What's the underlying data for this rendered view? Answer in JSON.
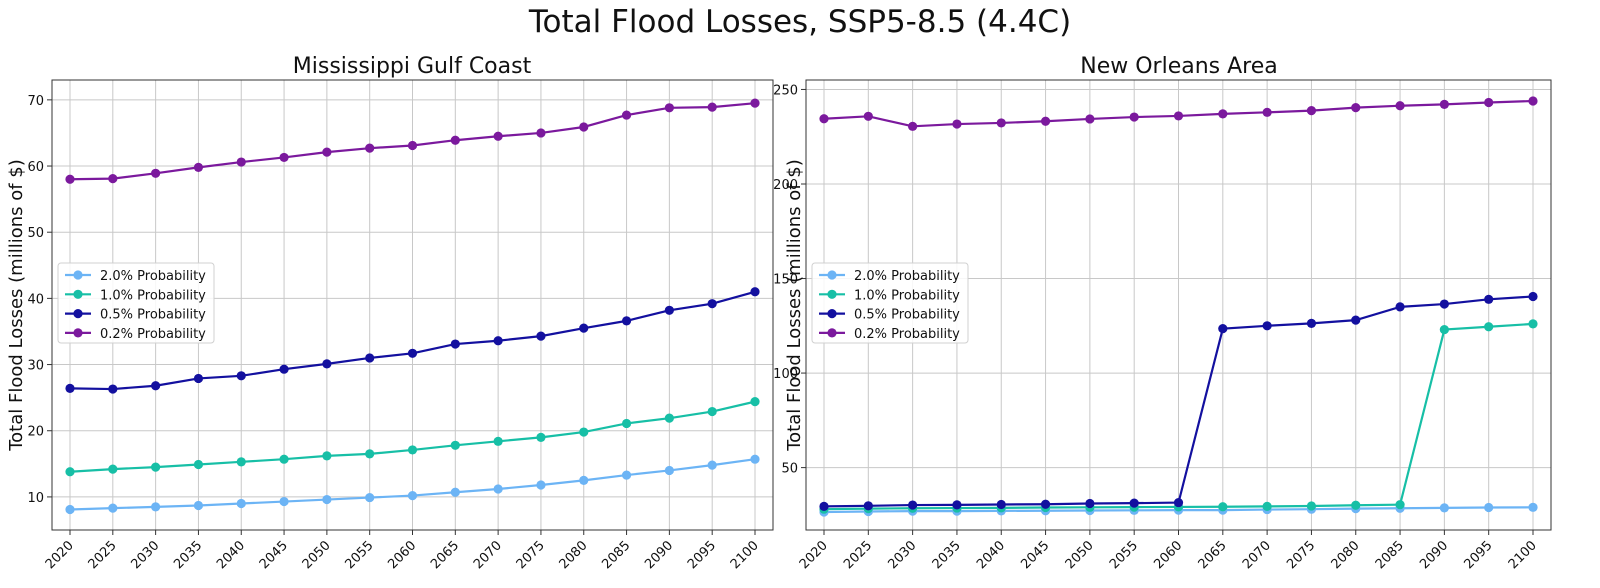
{
  "title": "Total Flood Losses, SSP5-8.5 (4.4C)",
  "chart_data": [
    {
      "type": "line",
      "title": "Mississippi Gulf Coast",
      "xlabel": "",
      "ylabel": "Total Flood Losses (millions of $)",
      "x": [
        2020,
        2025,
        2030,
        2035,
        2040,
        2045,
        2050,
        2055,
        2060,
        2065,
        2070,
        2075,
        2080,
        2085,
        2090,
        2095,
        2100
      ],
      "yticks": [
        10,
        20,
        30,
        40,
        50,
        60,
        70
      ],
      "ylim": [
        5,
        73
      ],
      "grid": true,
      "legend_position": "center-left",
      "series": [
        {
          "name": "2.0% Probability",
          "color": "#6cb4f5",
          "values": [
            8.1,
            8.3,
            8.5,
            8.7,
            9.0,
            9.3,
            9.6,
            9.9,
            10.2,
            10.7,
            11.2,
            11.8,
            12.5,
            13.3,
            14.0,
            14.8,
            15.7
          ]
        },
        {
          "name": "1.0% Probability",
          "color": "#17bfa6",
          "values": [
            13.8,
            14.2,
            14.5,
            14.9,
            15.3,
            15.7,
            16.2,
            16.5,
            17.1,
            17.8,
            18.4,
            19.0,
            19.8,
            21.1,
            21.9,
            22.9,
            24.4
          ]
        },
        {
          "name": "0.5% Probability",
          "color": "#13109f",
          "values": [
            26.4,
            26.3,
            26.8,
            27.9,
            28.3,
            29.3,
            30.1,
            31.0,
            31.7,
            33.1,
            33.6,
            34.3,
            35.5,
            36.6,
            38.2,
            39.2,
            41.0
          ]
        },
        {
          "name": "0.2% Probability",
          "color": "#7b199d",
          "values": [
            58.0,
            58.1,
            58.9,
            59.8,
            60.6,
            61.3,
            62.1,
            62.7,
            63.1,
            63.9,
            64.5,
            65.0,
            65.9,
            67.7,
            68.8,
            68.9,
            69.5
          ]
        }
      ]
    },
    {
      "type": "line",
      "title": "New Orleans Area",
      "xlabel": "",
      "ylabel": "Total Flood Losses (millions of $)",
      "x": [
        2020,
        2025,
        2030,
        2035,
        2040,
        2045,
        2050,
        2055,
        2060,
        2065,
        2070,
        2075,
        2080,
        2085,
        2090,
        2095,
        2100
      ],
      "yticks": [
        50,
        100,
        150,
        200,
        250
      ],
      "ylim": [
        17,
        255
      ],
      "grid": true,
      "legend_position": "center-left",
      "series": [
        {
          "name": "2.0% Probability",
          "color": "#6cb4f5",
          "values": [
            26.5,
            26.8,
            27.0,
            27.0,
            27.1,
            27.2,
            27.3,
            27.4,
            27.5,
            27.5,
            27.8,
            28.0,
            28.3,
            28.5,
            28.7,
            28.9,
            29.0
          ]
        },
        {
          "name": "1.0% Probability",
          "color": "#17bfa6",
          "values": [
            28.0,
            28.3,
            28.5,
            28.6,
            28.7,
            28.9,
            29.0,
            29.1,
            29.2,
            29.3,
            29.5,
            29.7,
            30.1,
            30.4,
            123.0,
            124.5,
            126.0
          ]
        },
        {
          "name": "0.5% Probability",
          "color": "#13109f",
          "values": [
            29.5,
            29.8,
            30.2,
            30.3,
            30.5,
            30.6,
            31.0,
            31.2,
            31.5,
            123.5,
            125.0,
            126.3,
            128.0,
            135.0,
            136.5,
            139.0,
            140.5
          ]
        },
        {
          "name": "0.2% Probability",
          "color": "#7b199d",
          "values": [
            234.5,
            235.8,
            230.5,
            231.7,
            232.3,
            233.2,
            234.4,
            235.4,
            236.0,
            237.1,
            237.9,
            238.8,
            240.4,
            241.4,
            242.1,
            243.1,
            243.9
          ]
        }
      ]
    }
  ]
}
